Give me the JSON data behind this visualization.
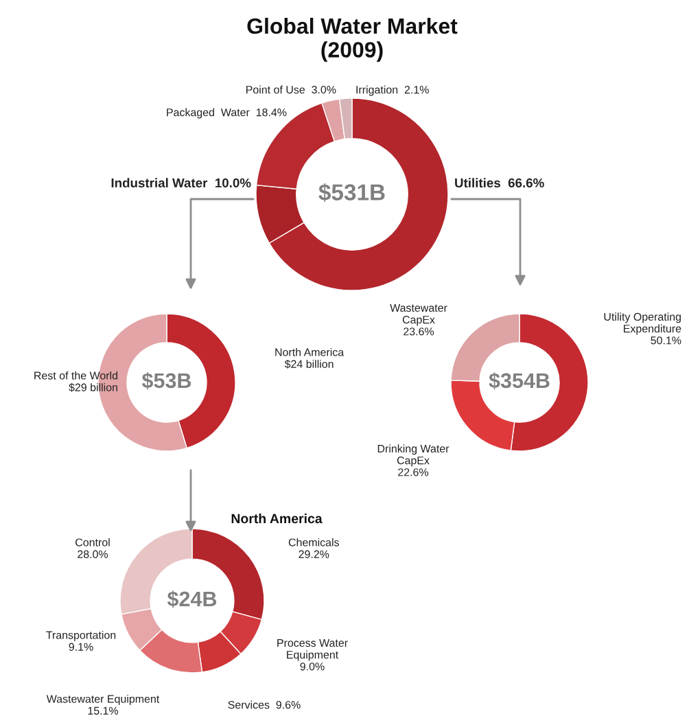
{
  "chart_data": [
    {
      "type": "donut",
      "title": "Global Water Market\n(2009)",
      "categories": [
        "Utilities",
        "Industrial Water",
        "Packaged  Water",
        "Point of Use",
        "Irrigation"
      ],
      "values": [
        66.6,
        10.0,
        18.4,
        3.0,
        2.1
      ],
      "value_labels": [
        "66.6%",
        "10.0%",
        "18.4%",
        "3.0%",
        "2.1%"
      ],
      "colors": [
        "#b3262c",
        "#a92227",
        "#b82a30",
        "#e0a2a4",
        "#d6b4b5"
      ],
      "annotations": [
        "$531B"
      ]
    },
    {
      "type": "donut",
      "categories": [
        "North America",
        "Rest of the World"
      ],
      "values": [
        24,
        29
      ],
      "value_labels": [
        "$24 billion",
        "$29 billion"
      ],
      "colors": [
        "#c0282e",
        "#e2a4a6"
      ],
      "annotations": [
        "$53B"
      ]
    },
    {
      "type": "donut",
      "categories": [
        "Utility Operating Expenditure",
        "Drinking Water CapEx",
        "Wastewater CapEx"
      ],
      "values": [
        50.1,
        22.6,
        23.6
      ],
      "value_labels": [
        "50.1%",
        "22.6%",
        "23.6%"
      ],
      "colors": [
        "#c42a30",
        "#e0393c",
        "#dea3a5"
      ],
      "annotations": [
        "$354B"
      ]
    },
    {
      "type": "donut",
      "title": "North America",
      "categories": [
        "Chemicals",
        "Process Water Equipment",
        "Services",
        "Wastewater Equipment",
        "Transportation",
        "Control"
      ],
      "values": [
        29.2,
        9.0,
        9.6,
        15.1,
        9.1,
        28.0
      ],
      "value_labels": [
        "29.2%",
        "9.0%",
        "9.6%",
        "15.1%",
        "9.1%",
        "28.0%"
      ],
      "colors": [
        "#b3262c",
        "#d33a3d",
        "#cf3437",
        "#e06d70",
        "#e6a6a8",
        "#e8c4c5"
      ],
      "annotations": [
        "$24B"
      ]
    }
  ]
}
